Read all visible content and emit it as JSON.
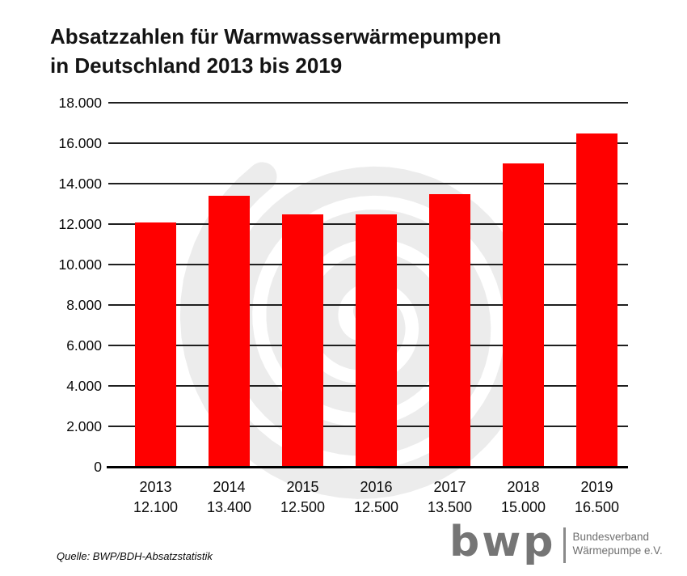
{
  "title": {
    "line1": "Absatzzahlen für Warmwasserwärmepumpen",
    "line2": "in Deutschland 2013 bis 2019"
  },
  "source": "Quelle: BWP/BDH-Absatzstatistik",
  "logo": {
    "mark": "bwp",
    "org_line1": "Bundesverband",
    "org_line2": "Wärmepumpe e.V."
  },
  "colors": {
    "bar": "#ff0000",
    "grid": "#1f1f1f",
    "axis": "#000000",
    "watermark": "#ececec",
    "logo_gray": "#757575"
  },
  "chart_data": {
    "type": "bar",
    "title": "Absatzzahlen für Warmwasserwärmepumpen in Deutschland 2013 bis 2019",
    "categories": [
      "2013",
      "2014",
      "2015",
      "2016",
      "2017",
      "2018",
      "2019"
    ],
    "values": [
      12100,
      13400,
      12500,
      12500,
      13500,
      15000,
      16500
    ],
    "value_labels": [
      "12.100",
      "13.400",
      "12.500",
      "12.500",
      "13.500",
      "15.000",
      "16.500"
    ],
    "xlabel": "",
    "ylabel": "",
    "ylim": [
      0,
      18000
    ],
    "ytick_step": 2000,
    "ytick_labels": [
      "0",
      "2.000",
      "4.000",
      "6.000",
      "8.000",
      "10.000",
      "12.000",
      "14.000",
      "16.000",
      "18.000"
    ],
    "grid": true,
    "legend": false
  }
}
